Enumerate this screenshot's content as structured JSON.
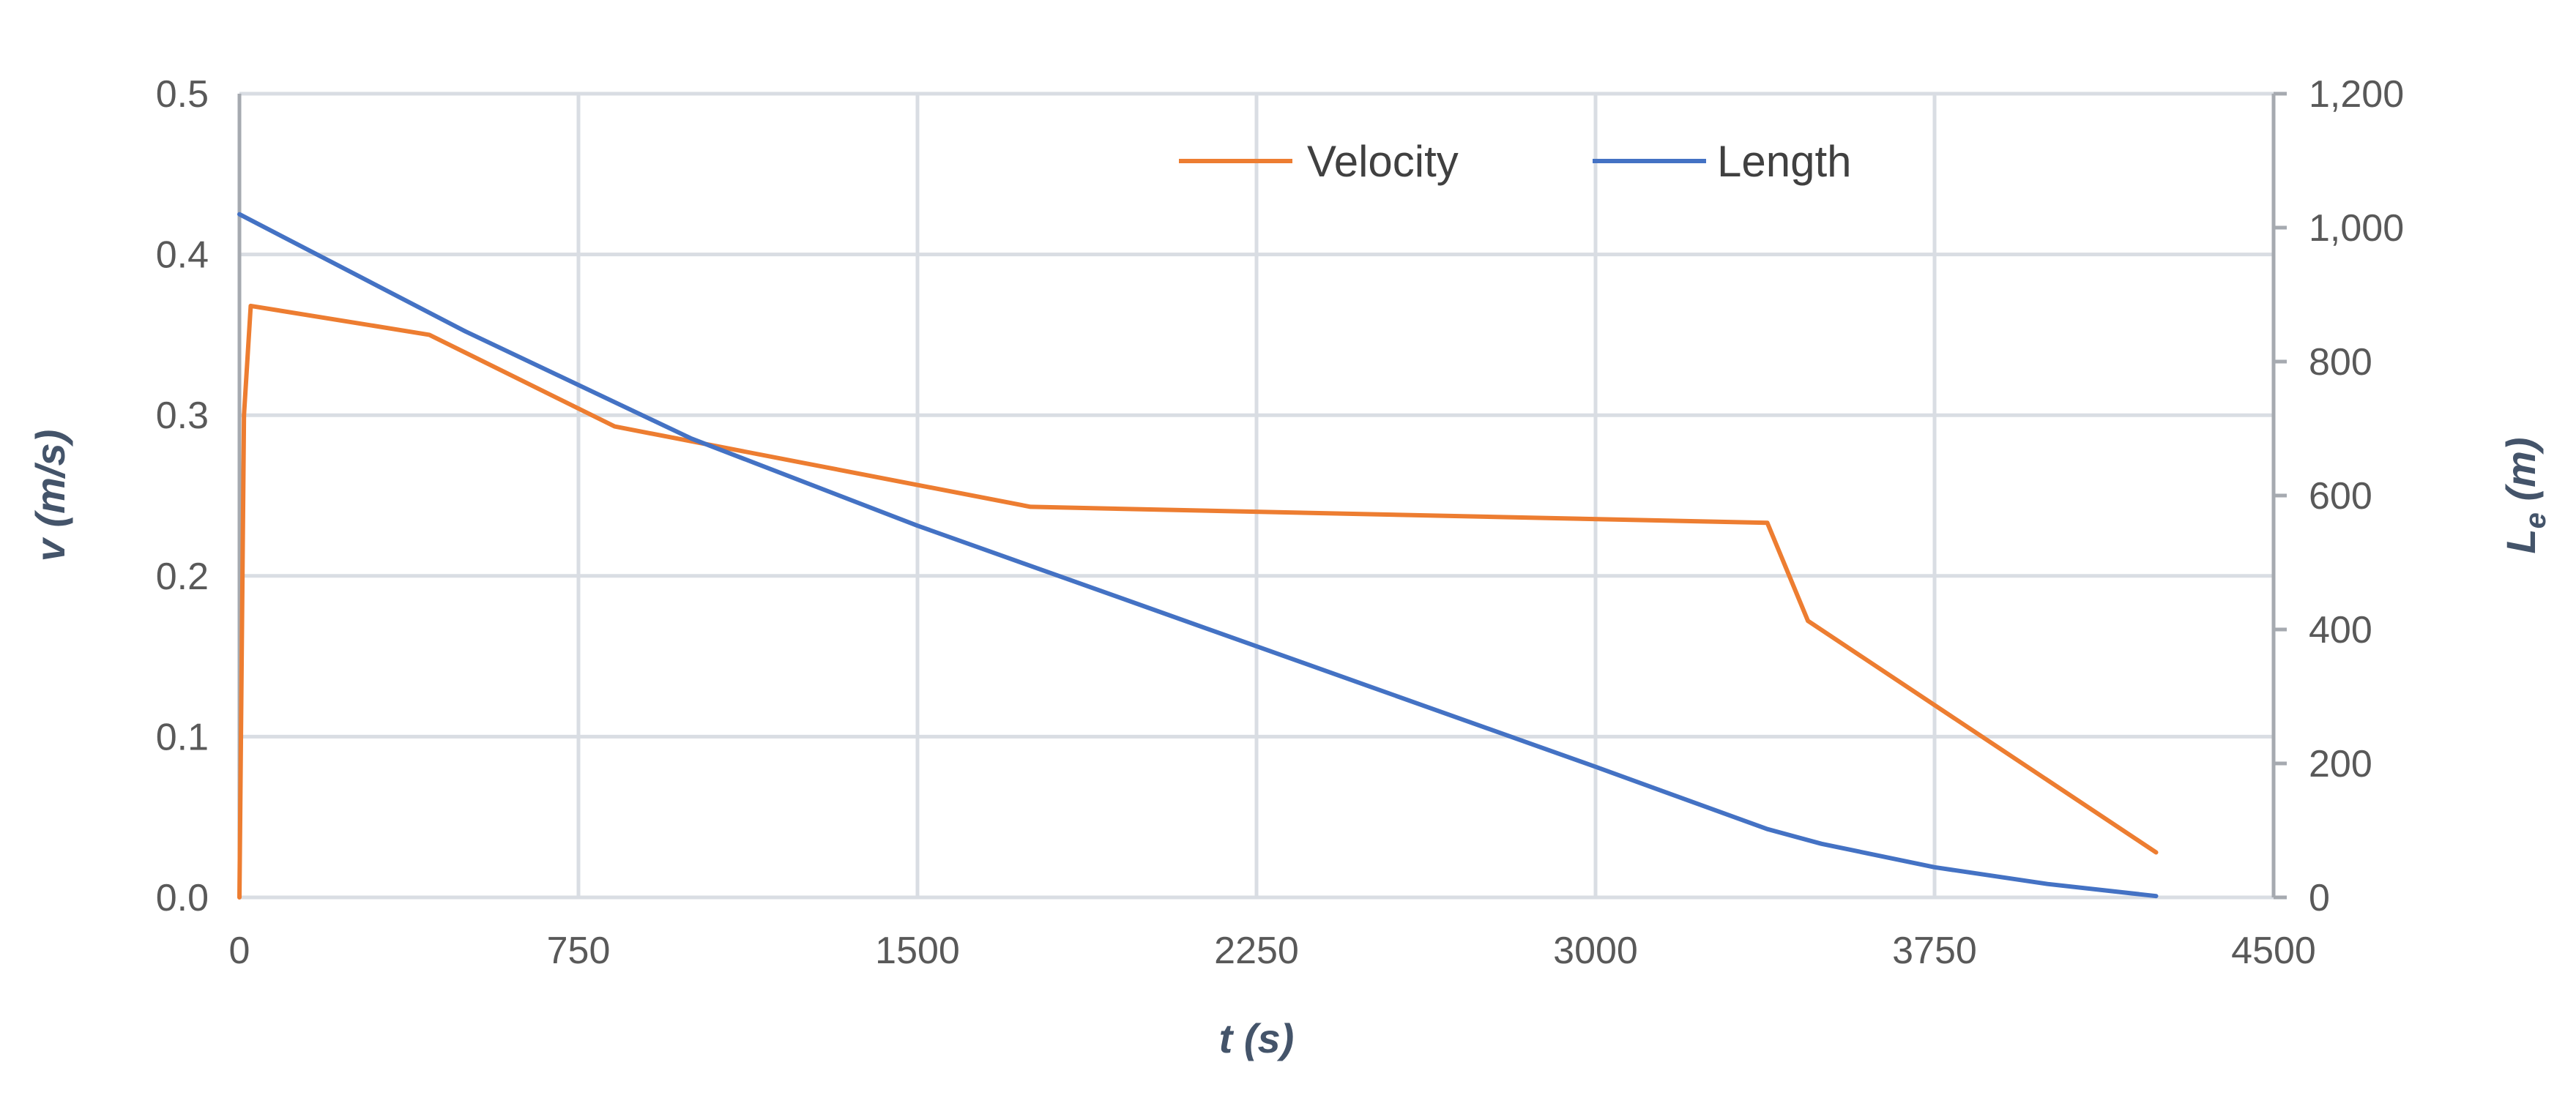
{
  "chart_data": {
    "type": "line",
    "title": "",
    "xlabel": "t (s)",
    "ylabel_left": "v (m/s)",
    "ylabel_right": {
      "base": "L",
      "subscript": "e",
      "unit": " (m)"
    },
    "xlim": [
      0,
      4500
    ],
    "ylim_left": [
      0,
      0.5
    ],
    "ylim_right": [
      0,
      1200
    ],
    "x_ticks": [
      "0",
      "750",
      "1500",
      "2250",
      "3000",
      "3750",
      "4500"
    ],
    "y_left_ticks": [
      "0.0",
      "0.1",
      "0.2",
      "0.3",
      "0.4",
      "0.5"
    ],
    "y_right_ticks": [
      "0",
      "200",
      "400",
      "600",
      "800",
      "1,000",
      "1,200"
    ],
    "grid": true,
    "legend_position": "top-center",
    "series": [
      {
        "name": "Velocity",
        "axis": "left",
        "color": "#ed7d31",
        "x": [
          0,
          10,
          25,
          420,
          830,
          1750,
          3380,
          3470,
          4240
        ],
        "y": [
          0,
          0.3,
          0.368,
          0.35,
          0.293,
          0.243,
          0.233,
          0.172,
          0.028
        ]
      },
      {
        "name": "Length",
        "axis": "right",
        "color": "#4472c4",
        "x": [
          0,
          500,
          1000,
          1500,
          2000,
          2500,
          3000,
          3380,
          3500,
          3750,
          4000,
          4240
        ],
        "y": [
          1020,
          845,
          685,
          555,
          435,
          315,
          195,
          102,
          80,
          45,
          20,
          2
        ]
      }
    ]
  }
}
